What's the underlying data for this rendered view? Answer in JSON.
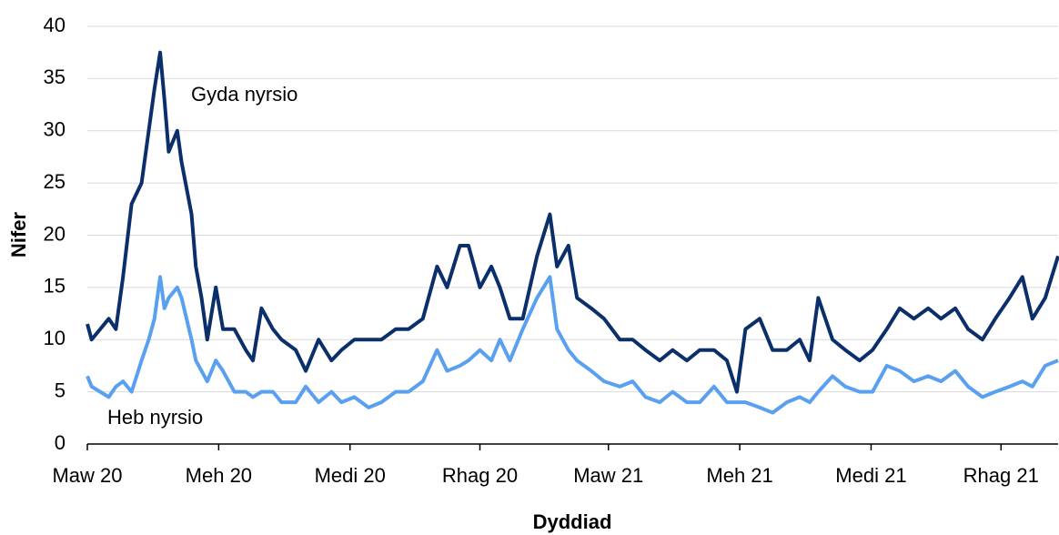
{
  "chart_data": {
    "type": "line",
    "y_label": "Nifer",
    "x_label": "Dyddiad",
    "x": [
      0,
      3,
      9,
      15,
      20,
      25,
      31,
      38,
      43,
      47,
      51,
      54,
      57,
      63,
      66,
      73,
      76,
      80,
      84,
      90,
      95,
      103,
      111,
      116,
      122,
      130,
      136,
      146,
      153,
      162,
      171,
      178,
      187,
      197,
      206,
      216,
      225,
      235,
      245,
      252,
      261,
      267,
      275,
      283,
      289,
      296,
      305,
      315,
      324,
      329,
      337,
      343,
      353,
      362,
      373,
      382,
      391,
      401,
      410,
      420,
      429,
      439,
      448,
      455,
      461,
      471,
      480,
      490,
      499,
      506,
      512,
      522,
      531,
      541,
      550,
      560,
      569,
      579,
      589,
      598,
      608,
      617,
      627,
      636,
      646,
      655,
      662,
      671,
      680
    ],
    "series": [
      {
        "name": "Gyda nyrsio",
        "color": "#0b2f6b",
        "values": [
          11.5,
          10,
          11,
          12,
          11,
          16,
          23,
          25,
          30,
          34,
          37.5,
          33,
          28,
          30,
          27,
          22,
          17,
          14,
          10,
          15,
          11,
          11,
          9,
          8,
          13,
          11,
          10,
          9,
          7,
          10,
          8,
          9,
          10,
          10,
          10,
          11,
          11,
          12,
          17,
          15,
          19,
          19,
          15,
          17,
          15,
          12,
          12,
          18,
          22,
          17,
          19,
          14,
          13,
          12,
          10,
          10,
          9,
          8,
          9,
          8,
          9,
          9,
          8,
          5,
          11,
          12,
          9,
          9,
          10,
          8,
          14,
          10,
          9,
          8,
          9,
          11,
          13,
          12,
          13,
          12,
          13,
          11,
          10,
          12,
          14,
          16,
          12,
          14,
          18
        ]
      },
      {
        "name": "Heb nyrsio",
        "color": "#5aa0f0",
        "values": [
          6.5,
          5.5,
          5,
          4.5,
          5.5,
          6,
          5,
          8,
          10,
          12,
          16,
          13,
          14,
          15,
          14,
          10,
          8,
          7,
          6,
          8,
          7,
          5,
          5,
          4.5,
          5,
          5,
          4,
          4,
          5.5,
          4,
          5,
          4,
          4.5,
          3.5,
          4,
          5,
          5,
          6,
          9,
          7,
          7.5,
          8,
          9,
          8,
          10,
          8,
          11,
          14,
          16,
          11,
          9,
          8,
          7,
          6,
          5.5,
          6,
          4.5,
          4,
          5,
          4,
          4,
          5.5,
          4,
          4,
          4,
          3.5,
          3,
          4,
          4.5,
          4,
          5,
          6.5,
          5.5,
          5,
          5,
          7.5,
          7,
          6,
          6.5,
          6,
          7,
          5.5,
          4.5,
          5,
          5.5,
          6,
          5.5,
          7.5,
          8
        ]
      }
    ],
    "xlim": [
      0,
      680
    ],
    "xticks": [
      {
        "value": 0,
        "label": "Maw 20"
      },
      {
        "value": 92,
        "label": "Meh 20"
      },
      {
        "value": 184,
        "label": "Medi 20"
      },
      {
        "value": 275,
        "label": "Rhag 20"
      },
      {
        "value": 365,
        "label": "Maw 21"
      },
      {
        "value": 457,
        "label": "Meh 21"
      },
      {
        "value": 549,
        "label": "Medi 21"
      },
      {
        "value": 640,
        "label": "Rhag 21"
      }
    ],
    "ylim": [
      0,
      40
    ],
    "yticks": [
      0,
      5,
      10,
      15,
      20,
      25,
      30,
      35,
      40
    ],
    "grid": true
  }
}
